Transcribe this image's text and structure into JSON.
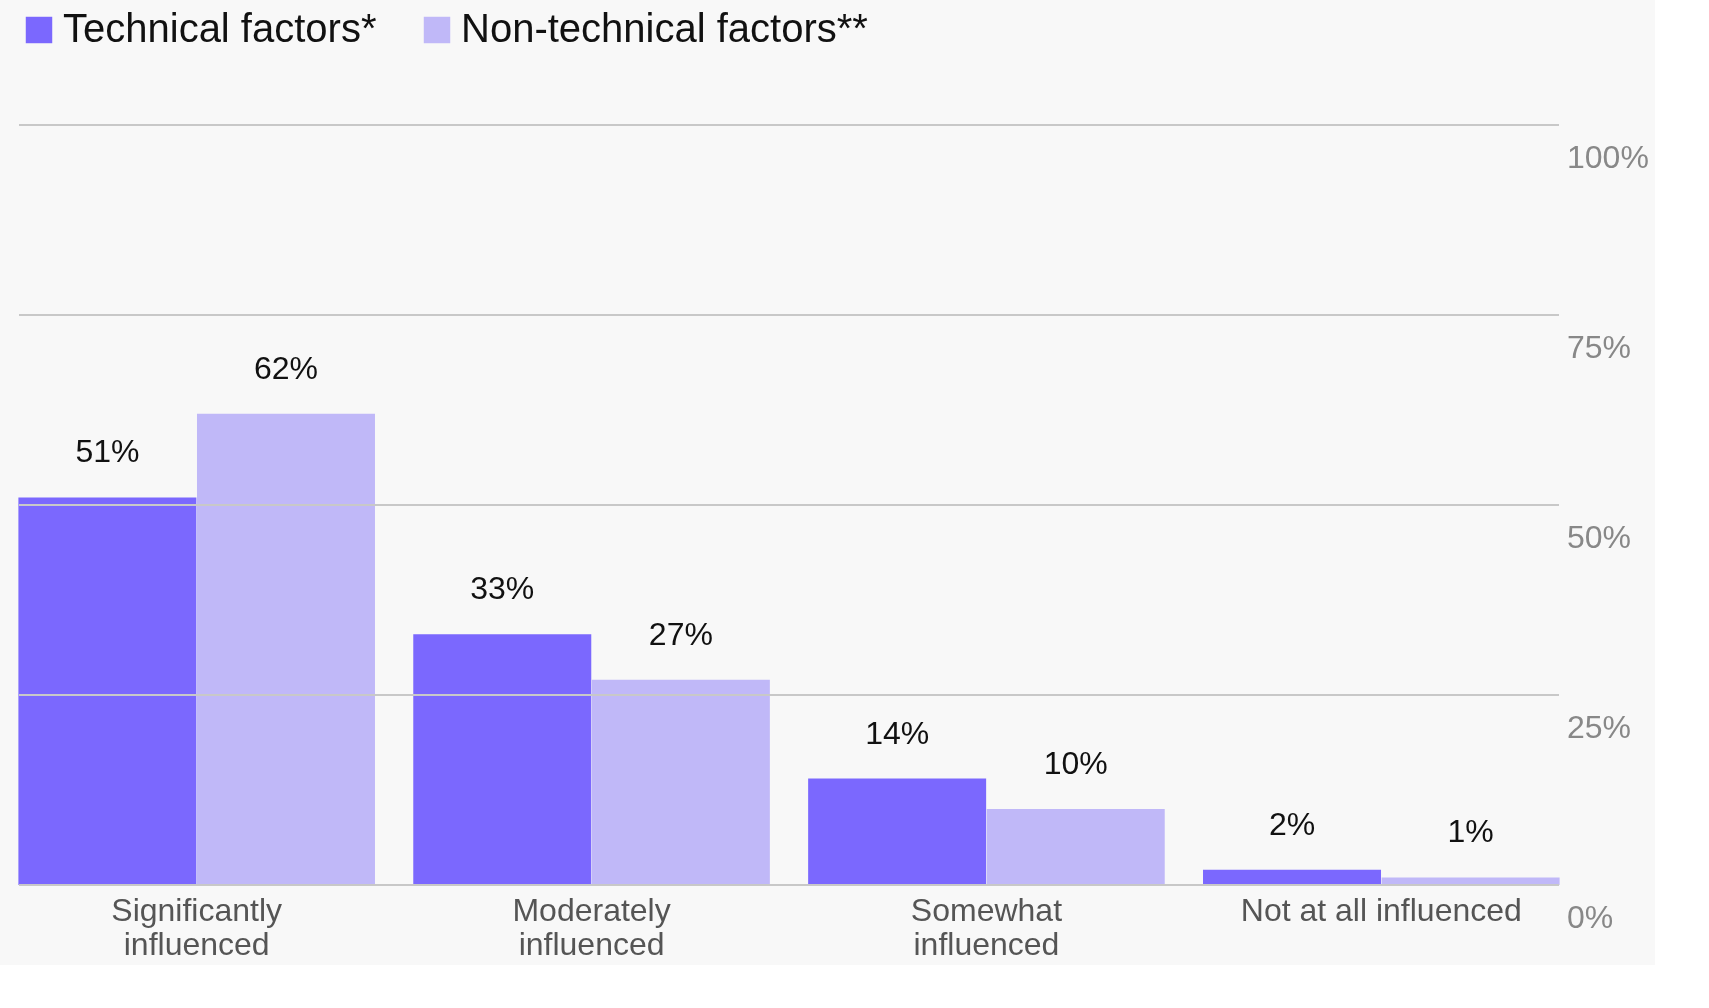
{
  "chart_data": {
    "type": "bar",
    "categories": [
      "Significantly\ninfluenced",
      "Moderately\ninfluenced",
      "Somewhat\ninfluenced",
      "Not at all influenced"
    ],
    "series": [
      {
        "name": "Technical factors*",
        "color": "#7b68fe",
        "values": [
          51,
          33,
          14,
          2
        ]
      },
      {
        "name": "Non-technical factors**",
        "color": "#c0b8f8",
        "values": [
          62,
          27,
          10,
          1
        ]
      }
    ],
    "ylim": [
      0,
      100
    ],
    "yticks": [
      {
        "value": 0,
        "label": "0%"
      },
      {
        "value": 25,
        "label": "25%"
      },
      {
        "value": 50,
        "label": "50%"
      },
      {
        "value": 75,
        "label": "75%"
      },
      {
        "value": 100,
        "label": "100%"
      }
    ],
    "value_labels": [
      [
        "51%",
        "33%",
        "14%",
        "2%"
      ],
      [
        "62%",
        "27%",
        "10%",
        "1%"
      ]
    ],
    "grid": "y",
    "legend": "top left"
  }
}
